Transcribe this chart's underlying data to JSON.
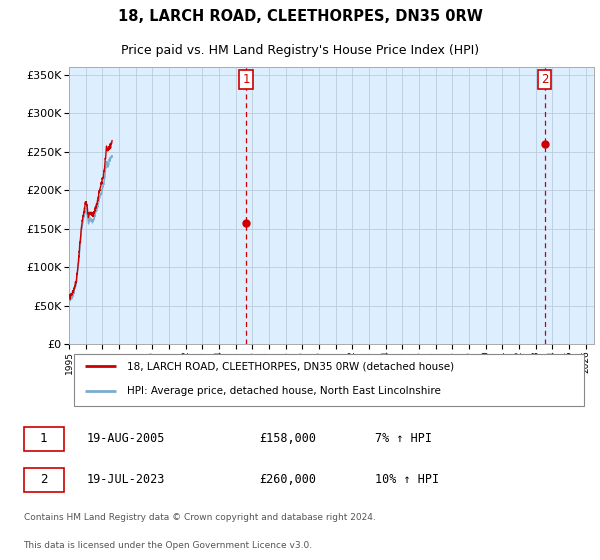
{
  "title": "18, LARCH ROAD, CLEETHORPES, DN35 0RW",
  "subtitle": "Price paid vs. HM Land Registry's House Price Index (HPI)",
  "legend_line1": "18, LARCH ROAD, CLEETHORPES, DN35 0RW (detached house)",
  "legend_line2": "HPI: Average price, detached house, North East Lincolnshire",
  "transaction1_date": "19-AUG-2005",
  "transaction1_price": "£158,000",
  "transaction1_hpi": "7% ↑ HPI",
  "transaction1_year": 2005.63,
  "transaction1_value": 158000,
  "transaction2_date": "19-JUL-2023",
  "transaction2_price": "£260,000",
  "transaction2_hpi": "10% ↑ HPI",
  "transaction2_year": 2023.54,
  "transaction2_value": 260000,
  "footer1": "Contains HM Land Registry data © Crown copyright and database right 2024.",
  "footer2": "This data is licensed under the Open Government Licence v3.0.",
  "red_color": "#cc0000",
  "blue_color": "#7aadcc",
  "chart_bg": "#ddeeff",
  "dashed_color": "#cc0000",
  "background_color": "#ffffff",
  "grid_color": "#bbccdd",
  "ylim_max": 360000,
  "xlim_min": 1995,
  "xlim_max": 2026.5
}
